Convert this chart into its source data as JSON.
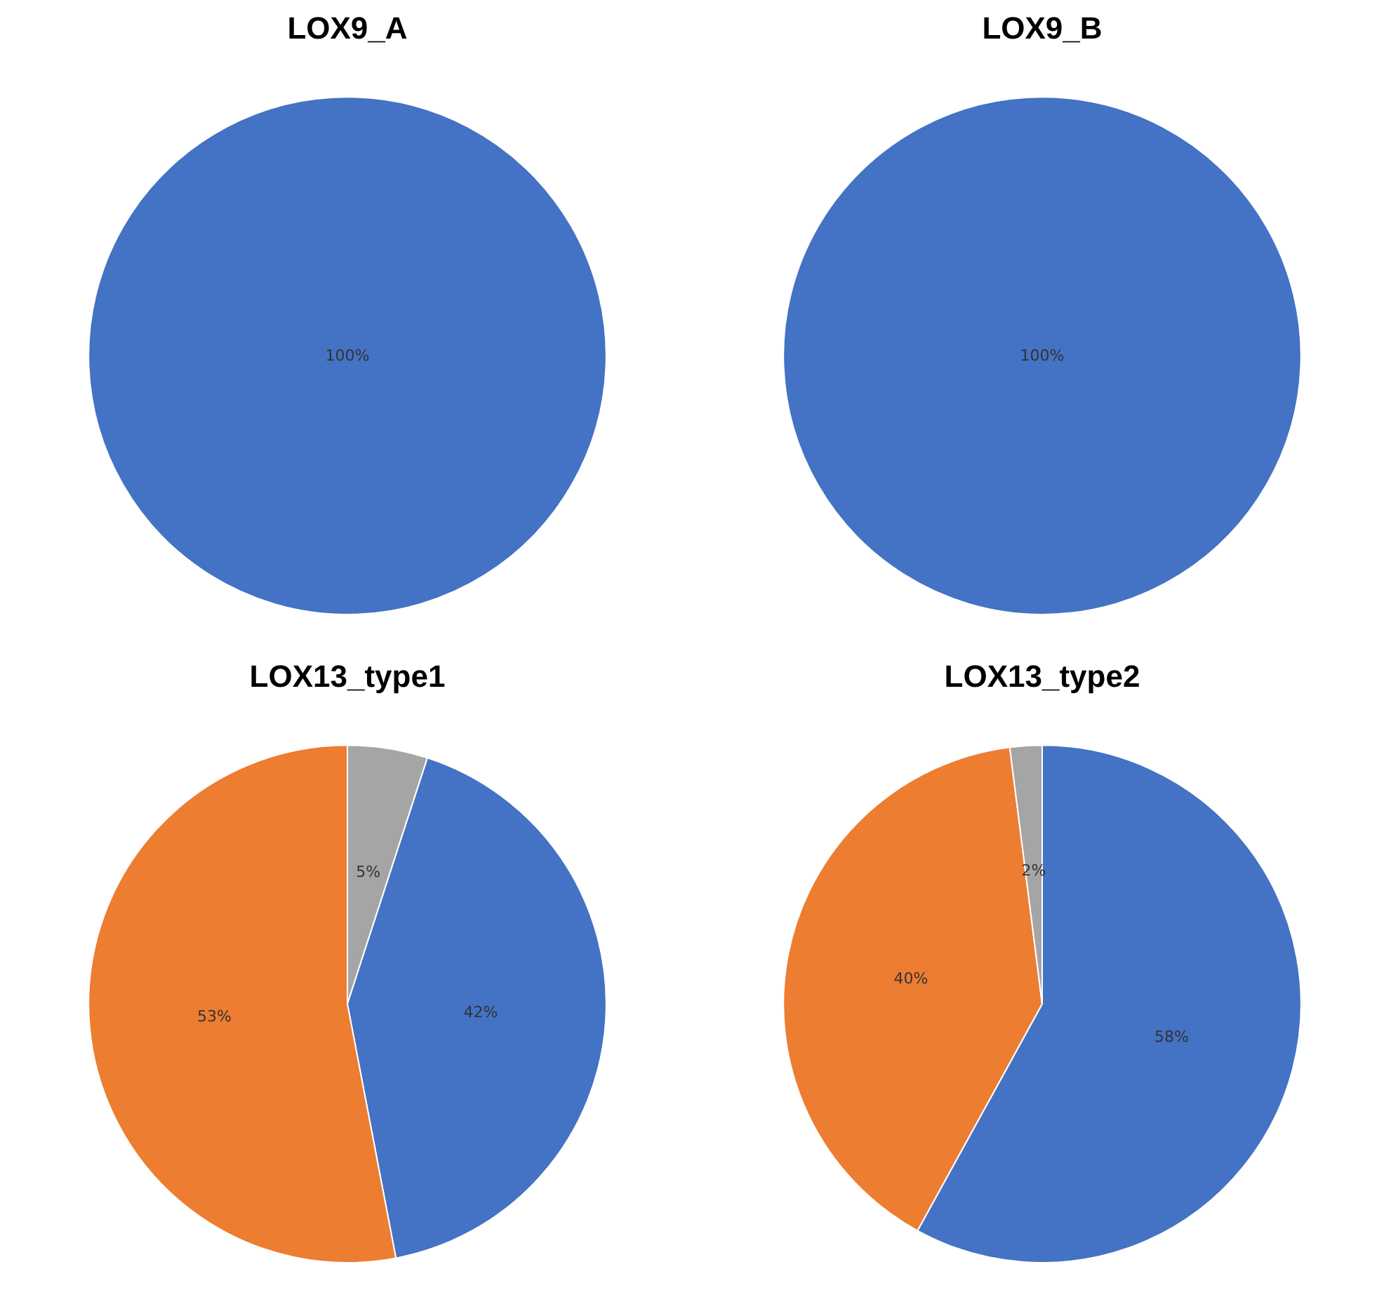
{
  "chart_data": [
    {
      "type": "pie",
      "title": "LOX9_A",
      "categories": [
        null
      ],
      "values": [
        100
      ],
      "colors": [
        "#4472c4"
      ],
      "value_labels": [
        "100%"
      ]
    },
    {
      "type": "pie",
      "title": "LOX9_B",
      "categories": [
        null
      ],
      "values": [
        100
      ],
      "colors": [
        "#4472c4"
      ],
      "value_labels": [
        "100%"
      ]
    },
    {
      "type": "pie",
      "title": "LOX13_type1",
      "categories": [
        null,
        null,
        null
      ],
      "values": [
        5,
        42,
        53
      ],
      "colors": [
        "#a5a5a5",
        "#4472c4",
        "#ed7d31"
      ],
      "value_labels": [
        "5%",
        "42%",
        "53%"
      ]
    },
    {
      "type": "pie",
      "title": "LOX13_type2",
      "categories": [
        null,
        null,
        null
      ],
      "values": [
        58,
        40,
        2
      ],
      "colors": [
        "#4472c4",
        "#ed7d31",
        "#a5a5a5"
      ],
      "value_labels": [
        "58%",
        "40%",
        "2%"
      ]
    }
  ]
}
